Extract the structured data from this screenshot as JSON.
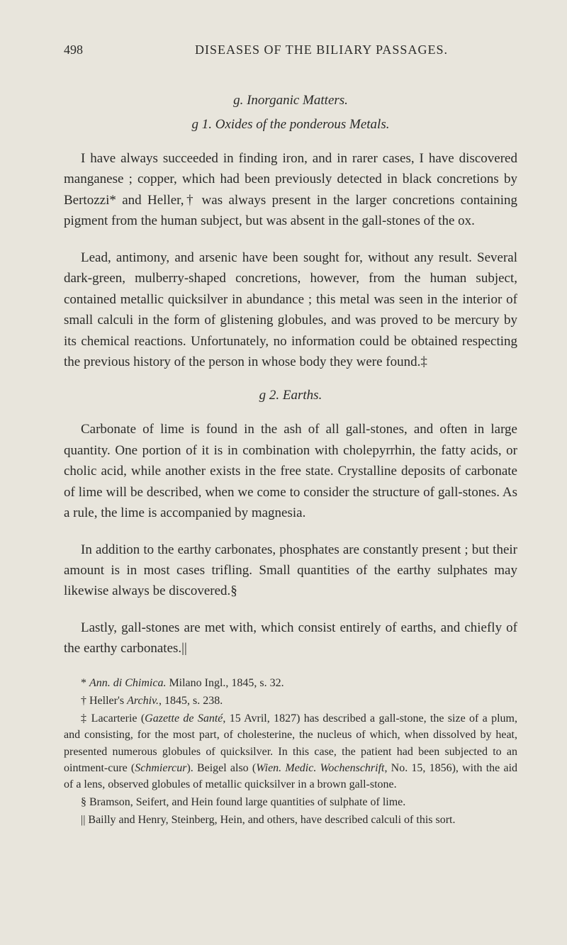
{
  "page_number": "498",
  "running_title": "DISEASES OF THE BILIARY PASSAGES.",
  "section_g": "g. Inorganic Matters.",
  "subsection_g1": "g 1. Oxides of the ponderous Metals.",
  "para1": "I have always succeeded in finding iron, and in rarer cases, I have discovered manganese ; copper, which had been previously detected in black concretions by Bertozzi* and Heller,† was always present in the larger concretions containing pigment from the human subject, but was absent in the gall-stones of the ox.",
  "para2": "Lead, antimony, and arsenic have been sought for, without any result. Several dark-green, mulberry-shaped concretions, however, from the human subject, contained metallic quicksilver in abundance ; this metal was seen in the interior of small calculi in the form of glistening globules, and was proved to be mercury by its chemical reactions. Unfortunately, no information could be obtained respecting the previous history of the person in whose body they were found.‡",
  "subsection_g2": "g 2. Earths.",
  "para3": "Carbonate of lime is found in the ash of all gall-stones, and often in large quantity. One portion of it is in combination with cholepyrrhin, the fatty acids, or cholic acid, while another exists in the free state. Crystalline deposits of carbonate of lime will be described, when we come to consider the structure of gall-stones. As a rule, the lime is accompanied by magnesia.",
  "para4": "In addition to the earthy carbonates, phosphates are constantly present ; but their amount is in most cases trifling. Small quantities of the earthy sulphates may likewise always be discovered.§",
  "para5": "Lastly, gall-stones are met with, which consist entirely of earths, and chiefly of the earthy carbonates.||",
  "footnote1_pre": "* ",
  "footnote1_italic": "Ann. di Chimica.",
  "footnote1_post": " Milano Ingl., 1845, s. 32.",
  "footnote2_pre": "† Heller's ",
  "footnote2_italic": "Archiv.",
  "footnote2_post": ", 1845, s. 238.",
  "footnote3_pre": "‡ Lacarterie (",
  "footnote3_italic1": "Gazette de Santé",
  "footnote3_mid": ", 15 Avril, 1827) has described a gall-stone, the size of a plum, and consisting, for the most part, of cholesterine, the nucleus of which, when dissolved by heat, presented numerous globules of quicksilver. In this case, the patient had been subjected to an ointment-cure (",
  "footnote3_italic2": "Schmiercur",
  "footnote3_mid2": "). Beigel also (",
  "footnote3_italic3": "Wien. Medic. Wochenschrift",
  "footnote3_post": ", No. 15, 1856), with the aid of a lens, observed globules of metallic quicksilver in a brown gall-stone.",
  "footnote4": "§ Bramson, Seifert, and Hein found large quantities of sulphate of lime.",
  "footnote5": "|| Bailly and Henry, Steinberg, Hein, and others, have described calculi of this sort."
}
